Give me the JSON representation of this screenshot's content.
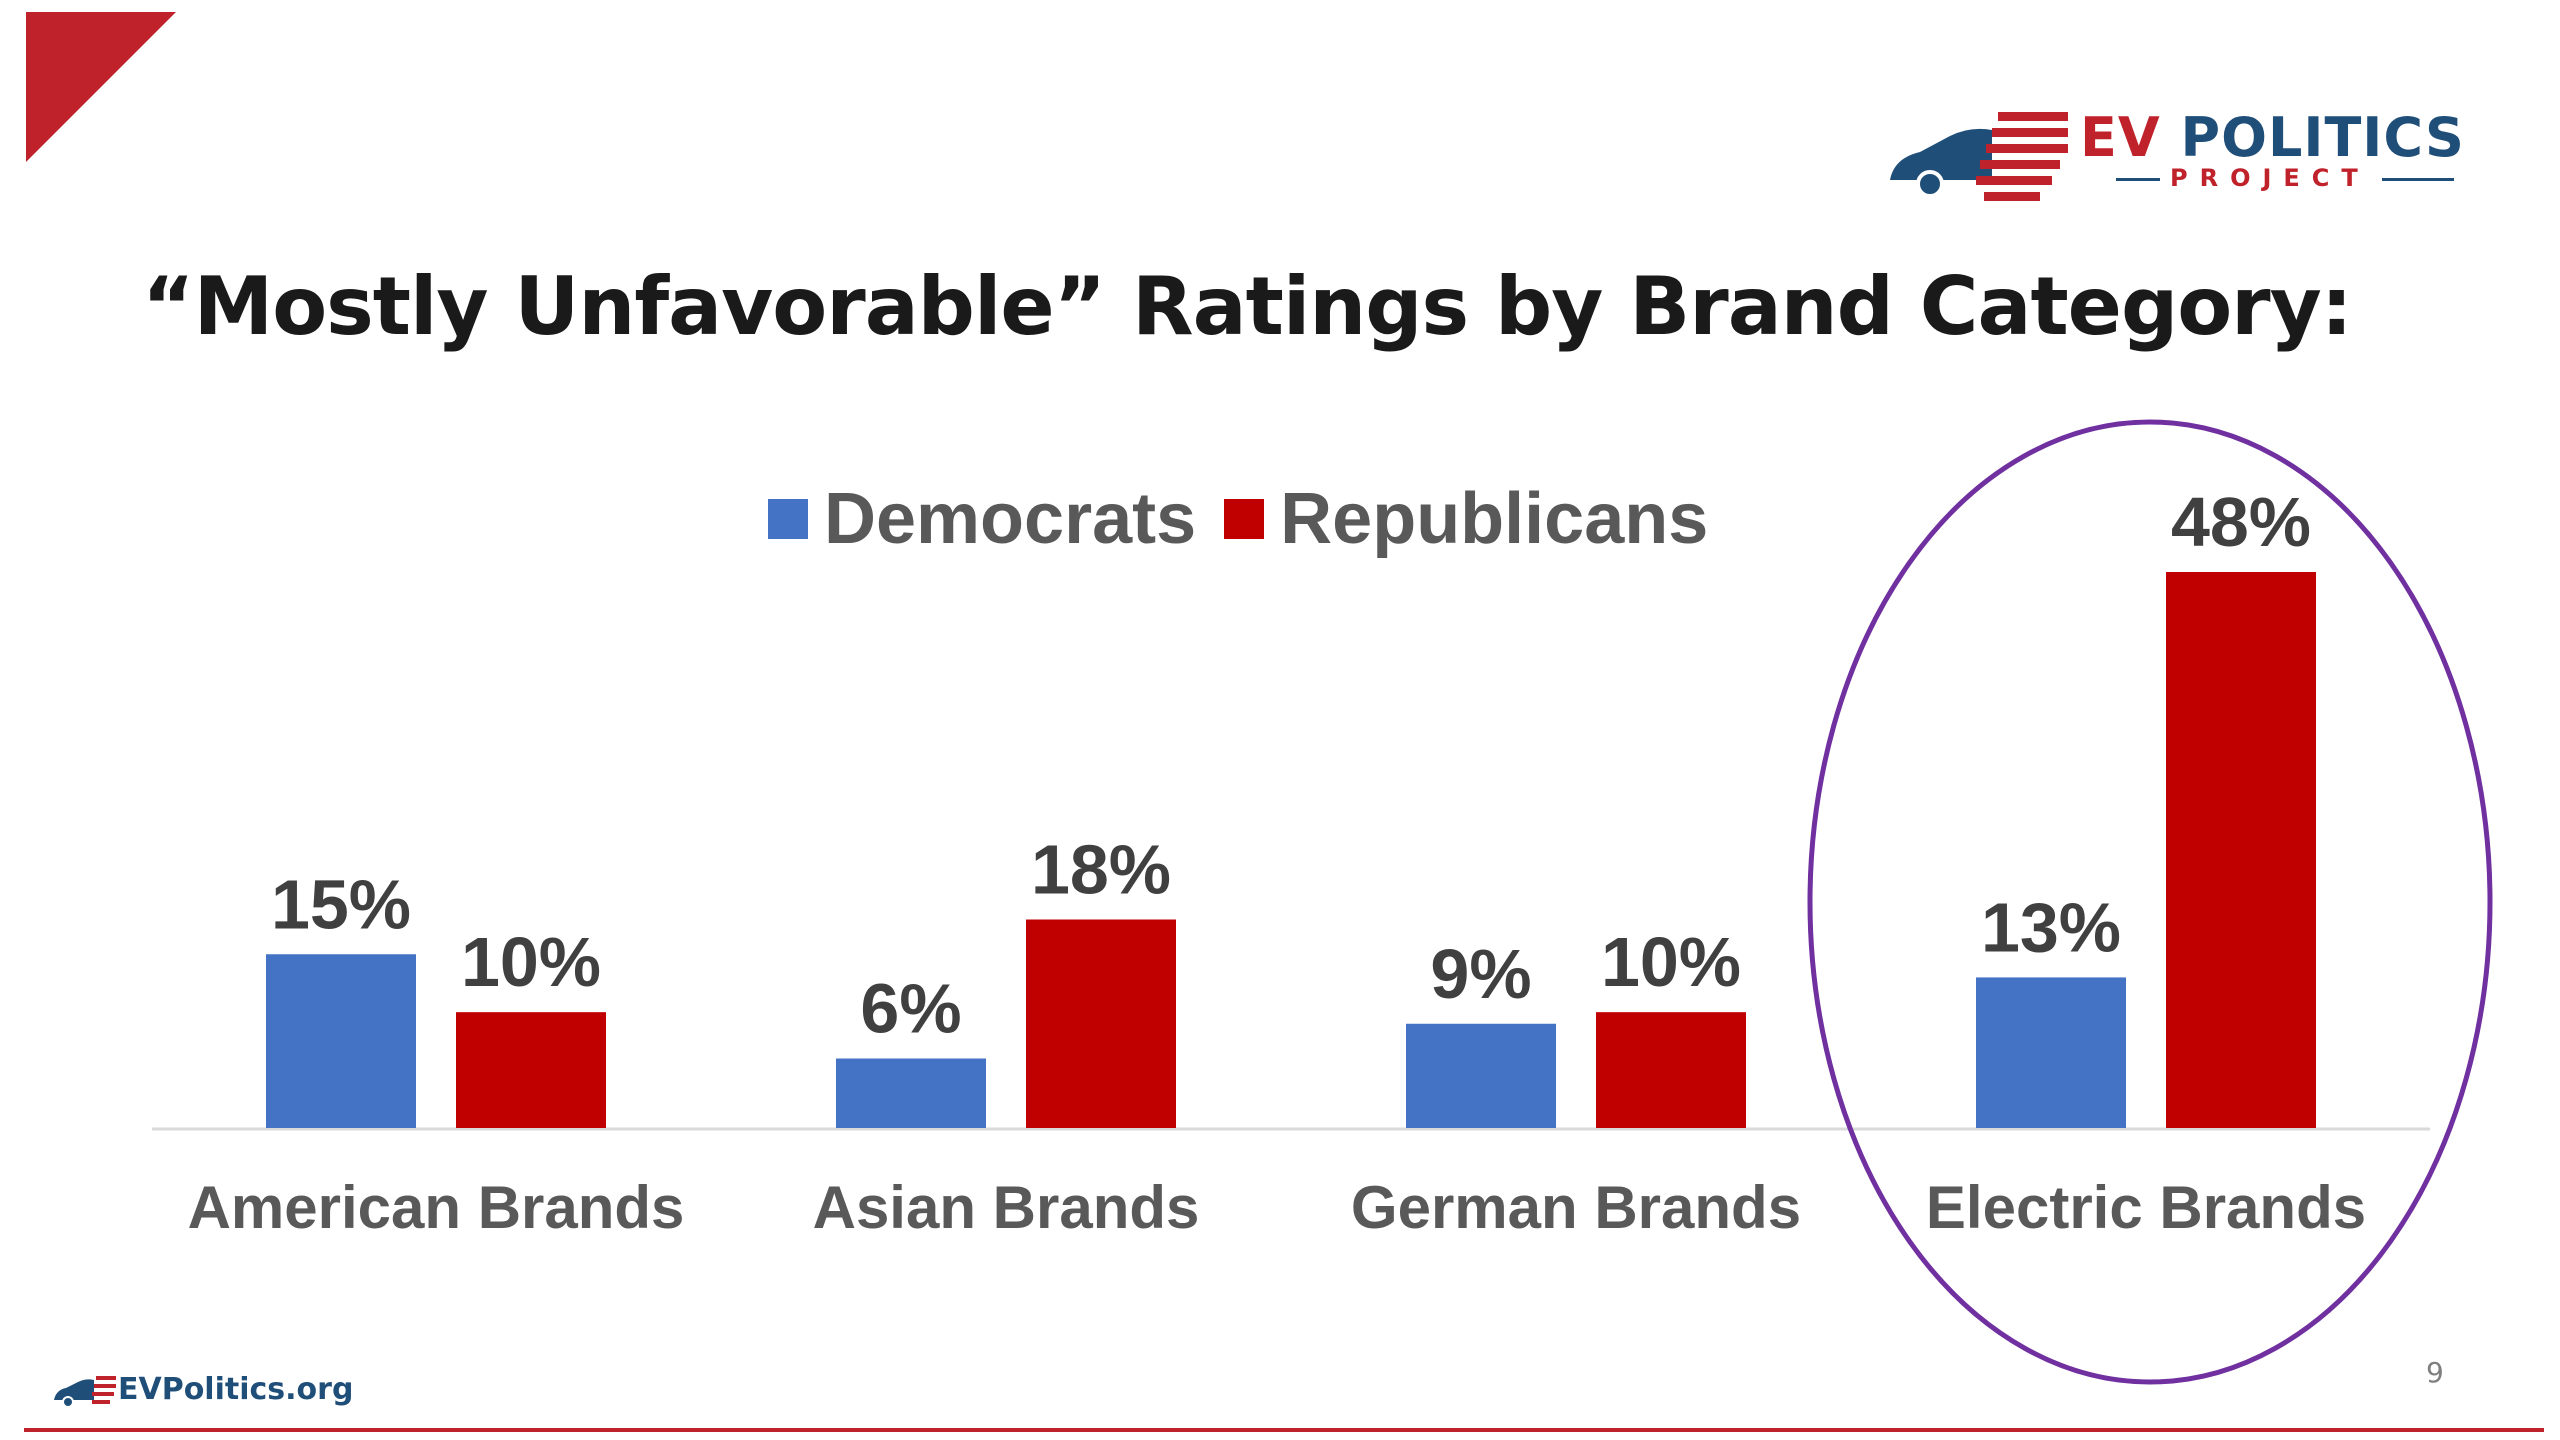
{
  "brand": {
    "logo_main_part1": "EV",
    "logo_main_part2": " POLITICS",
    "logo_sub": "PROJECT",
    "footer_site": "EVPolitics.org",
    "accent_red": "#c0222b",
    "accent_blue": "#1f4e79"
  },
  "slide": {
    "title": "“Mostly Unfavorable” Ratings by Brand Category:",
    "page_number": "9"
  },
  "chart_data": {
    "type": "bar",
    "categories": [
      "American Brands",
      "Asian Brands",
      "German Brands",
      "Electric Brands"
    ],
    "series": [
      {
        "name": "Democrats",
        "values": [
          15,
          6,
          9,
          13
        ],
        "labels": [
          "15%",
          "6%",
          "9%",
          "13%"
        ],
        "color": "#4472c4"
      },
      {
        "name": "Republicans",
        "values": [
          10,
          18,
          10,
          48
        ],
        "labels": [
          "10%",
          "18%",
          "10%",
          "48%"
        ],
        "color": "#c00000"
      }
    ],
    "ylim": [
      0,
      48
    ],
    "grid": false,
    "legend_position": "top-center",
    "highlight_category": "Electric Brands",
    "highlight_color": "#7030a0"
  }
}
